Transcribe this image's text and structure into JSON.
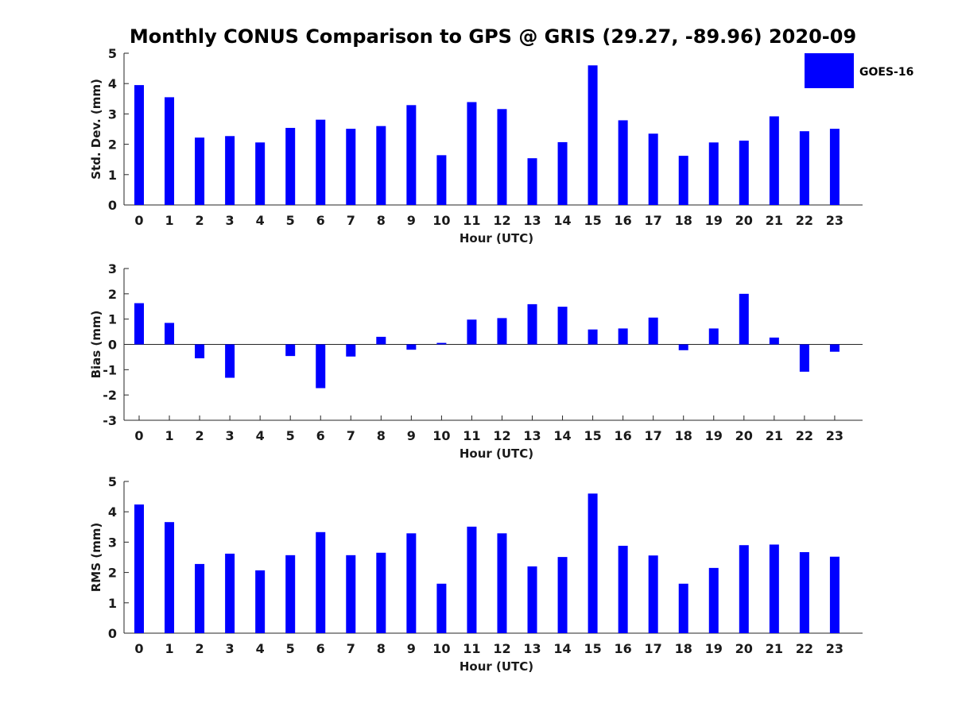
{
  "title": "Monthly CONUS Comparison to GPS @ GRIS (29.27, -89.96) 2020-09",
  "legend": {
    "label": "GOES-16",
    "color": "#0000ff",
    "placement": "top-right"
  },
  "chart_data": [
    {
      "type": "bar",
      "ylabel": "Std. Dev. (mm)",
      "xlabel": "Hour (UTC)",
      "ylim": [
        0,
        5
      ],
      "yticks": [
        "0",
        "1",
        "2",
        "3",
        "4",
        "5"
      ],
      "categories": [
        "0",
        "1",
        "2",
        "3",
        "4",
        "5",
        "6",
        "7",
        "8",
        "9",
        "10",
        "11",
        "12",
        "13",
        "14",
        "15",
        "16",
        "17",
        "18",
        "19",
        "20",
        "21",
        "22",
        "23"
      ],
      "series": [
        {
          "name": "GOES-16",
          "values": [
            3.95,
            3.55,
            2.22,
            2.27,
            2.06,
            2.54,
            2.81,
            2.51,
            2.6,
            3.29,
            1.64,
            3.39,
            3.16,
            1.54,
            2.07,
            4.6,
            2.79,
            2.35,
            1.62,
            2.06,
            2.12,
            2.92,
            2.43,
            2.51
          ]
        }
      ]
    },
    {
      "type": "bar",
      "ylabel": "Bias (mm)",
      "xlabel": "Hour (UTC)",
      "ylim": [
        -3,
        3
      ],
      "yticks": [
        "-3",
        "-2",
        "-1",
        "0",
        "1",
        "2",
        "3"
      ],
      "categories": [
        "0",
        "1",
        "2",
        "3",
        "4",
        "5",
        "6",
        "7",
        "8",
        "9",
        "10",
        "11",
        "12",
        "13",
        "14",
        "15",
        "16",
        "17",
        "18",
        "19",
        "20",
        "21",
        "22",
        "23"
      ],
      "series": [
        {
          "name": "GOES-16",
          "values": [
            1.63,
            0.85,
            -0.55,
            -1.32,
            0.0,
            -0.46,
            -1.73,
            -0.48,
            0.3,
            -0.21,
            0.06,
            0.98,
            1.04,
            1.59,
            1.49,
            0.59,
            0.63,
            1.06,
            -0.23,
            0.63,
            2.0,
            0.27,
            -1.08,
            -0.29
          ]
        }
      ]
    },
    {
      "type": "bar",
      "ylabel": "RMS (mm)",
      "xlabel": "Hour (UTC)",
      "ylim": [
        0,
        5
      ],
      "yticks": [
        "0",
        "1",
        "2",
        "3",
        "4",
        "5"
      ],
      "categories": [
        "0",
        "1",
        "2",
        "3",
        "4",
        "5",
        "6",
        "7",
        "8",
        "9",
        "10",
        "11",
        "12",
        "13",
        "14",
        "15",
        "16",
        "17",
        "18",
        "19",
        "20",
        "21",
        "22",
        "23"
      ],
      "series": [
        {
          "name": "GOES-16",
          "values": [
            4.24,
            3.66,
            2.28,
            2.62,
            2.07,
            2.57,
            3.33,
            2.57,
            2.65,
            3.29,
            1.63,
            3.51,
            3.29,
            2.2,
            2.51,
            4.6,
            2.88,
            2.56,
            1.63,
            2.15,
            2.9,
            2.92,
            2.67,
            2.52
          ]
        }
      ]
    }
  ]
}
